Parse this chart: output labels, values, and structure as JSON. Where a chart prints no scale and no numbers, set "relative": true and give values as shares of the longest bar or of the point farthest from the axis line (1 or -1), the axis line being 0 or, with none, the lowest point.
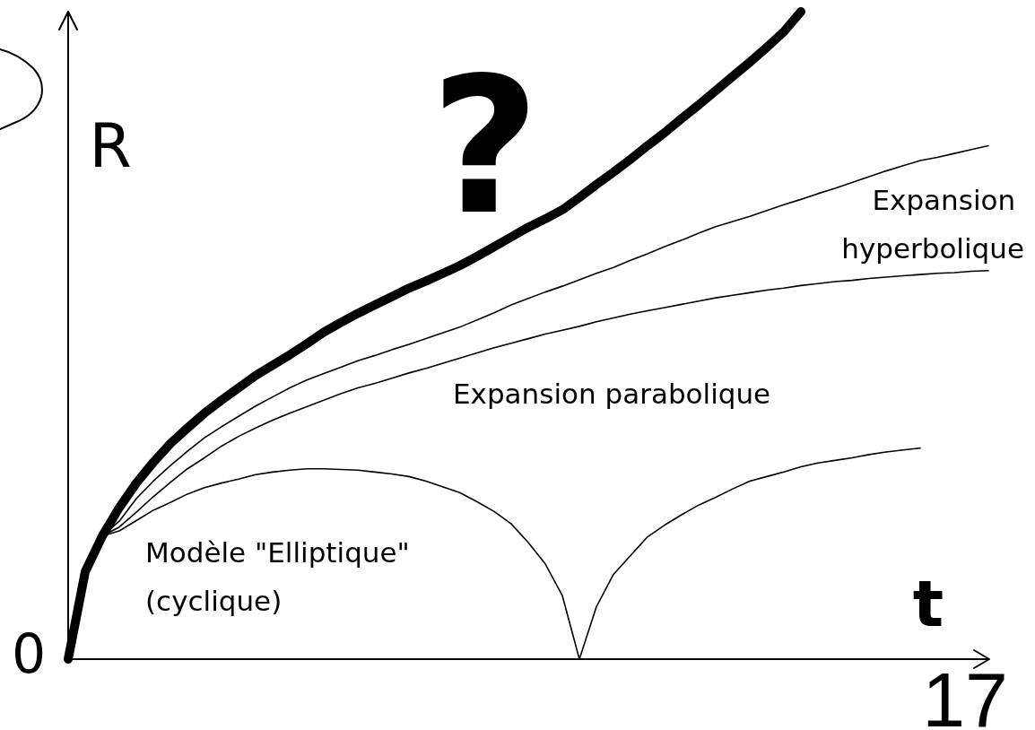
{
  "chart_data": {
    "type": "line",
    "relative": true,
    "xlabel": "t",
    "ylabel": "R",
    "categories": [
      null,
      null,
      null,
      null,
      null,
      null,
      null,
      null,
      null,
      null,
      null,
      null,
      null,
      null,
      null,
      null,
      null,
      null,
      null,
      null,
      null,
      null,
      null,
      null,
      null,
      null,
      null,
      null,
      null,
      null,
      null,
      null,
      null,
      null,
      null,
      null,
      null,
      null,
      null,
      null,
      null,
      null,
      null,
      null,
      null,
      null,
      null,
      null,
      null,
      null,
      null,
      null,
      null,
      null,
      null
    ],
    "series": [
      {
        "name": "Expansion hyperbolique",
        "color": "#000000",
        "values": [
          null,
          null,
          0.19,
          0.213,
          0.248,
          0.275,
          0.299,
          0.321,
          0.342,
          0.359,
          0.375,
          0.391,
          0.405,
          0.419,
          0.431,
          0.441,
          0.451,
          0.461,
          0.469,
          0.478,
          0.486,
          0.495,
          0.504,
          0.513,
          0.524,
          0.535,
          0.547,
          0.557,
          0.567,
          0.576,
          0.586,
          0.596,
          0.605,
          0.616,
          0.626,
          0.637,
          0.647,
          0.658,
          0.668,
          0.676,
          0.684,
          0.693,
          0.702,
          0.71,
          0.719,
          0.727,
          0.736,
          0.745,
          0.754,
          0.762,
          0.77,
          0.775,
          0.781,
          0.787,
          0.793
        ]
      },
      {
        "name": "Expansion parabolique",
        "color": "#000000",
        "values": [
          null,
          null,
          0.19,
          0.204,
          0.227,
          0.251,
          0.273,
          0.294,
          0.311,
          0.329,
          0.344,
          0.357,
          0.369,
          0.38,
          0.39,
          0.4,
          0.41,
          0.419,
          0.426,
          0.434,
          0.442,
          0.449,
          0.457,
          0.465,
          0.473,
          0.481,
          0.488,
          0.495,
          0.502,
          0.508,
          0.514,
          0.521,
          0.527,
          0.533,
          0.538,
          0.543,
          0.548,
          0.553,
          0.558,
          0.562,
          0.566,
          0.57,
          0.573,
          0.577,
          0.58,
          0.583,
          0.585,
          0.588,
          0.59,
          0.592,
          0.594,
          0.596,
          0.597,
          0.599,
          0.6
        ]
      },
      {
        "name": "Modèle \"Elliptique\" (cyclique)",
        "color": "#000000",
        "values": [
          null,
          null,
          0.19,
          0.198,
          0.214,
          0.23,
          0.242,
          0.255,
          0.265,
          0.272,
          0.278,
          0.285,
          0.289,
          0.292,
          0.294,
          0.294,
          0.293,
          0.292,
          0.289,
          0.286,
          0.282,
          0.275,
          0.266,
          0.257,
          0.243,
          0.228,
          0.209,
          0.18,
          0.147,
          0.098,
          0,
          0.081,
          0.131,
          0.16,
          0.189,
          0.207,
          0.223,
          0.238,
          0.25,
          0.263,
          0.275,
          0.282,
          0.289,
          0.297,
          0.303,
          0.307,
          0.311,
          0.316,
          0.32,
          0.323,
          0.326,
          null,
          null,
          null,
          null
        ]
      },
      {
        "color": "#000000",
        "values": [
          0,
          0.135,
          0.19,
          0.234,
          0.272,
          0.304,
          0.333,
          0.357,
          0.38,
          0.4,
          0.419,
          0.438,
          0.454,
          0.47,
          0.487,
          0.505,
          0.52,
          0.534,
          0.547,
          0.56,
          0.573,
          0.584,
          0.596,
          0.608,
          0.622,
          0.637,
          0.652,
          0.667,
          0.68,
          0.694,
          0.713,
          0.733,
          0.752,
          0.772,
          0.793,
          0.813,
          0.835,
          0.856,
          0.878,
          0.9,
          0.922,
          0.945,
          0.969,
          1,
          null,
          null,
          null,
          null,
          null,
          null,
          null,
          null,
          null,
          null,
          null
        ]
      }
    ],
    "annotations": [
      "?",
      "0",
      "17"
    ]
  }
}
